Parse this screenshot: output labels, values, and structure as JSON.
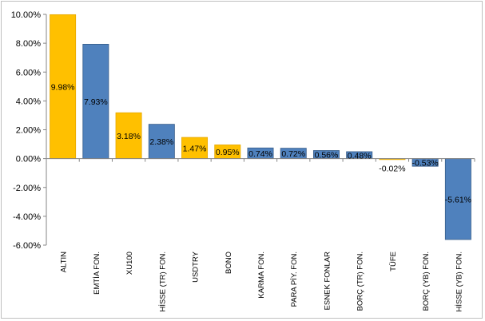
{
  "chart_data": {
    "type": "bar",
    "categories": [
      "ALTIN",
      "EMTİA FON.",
      "XU100",
      "HİSSE (TR) FON.",
      "USDTRY",
      "BONO",
      "KARMA FON.",
      "PARA PİY. FON.",
      "ESNEK FONLAR",
      "BORÇ (TR) FON.",
      "TÜFE",
      "BORÇ (YB) FON.",
      "HİSSE (YB) FON."
    ],
    "values": [
      9.98,
      7.93,
      3.18,
      2.38,
      1.47,
      0.95,
      0.74,
      0.72,
      0.56,
      0.48,
      -0.02,
      -0.53,
      -5.61
    ],
    "data_labels": [
      "9.98%",
      "7.93%",
      "3.18%",
      "2.38%",
      "1.47%",
      "0.95%",
      "0.74%",
      "0.72%",
      "0.56%",
      "0.48%",
      "-0.02%",
      "-0.53%",
      "-5.61%"
    ],
    "bar_colors": [
      "#FFC000",
      "#4F81BD",
      "#FFC000",
      "#4F81BD",
      "#FFC000",
      "#FFC000",
      "#4F81BD",
      "#4F81BD",
      "#4F81BD",
      "#4F81BD",
      "#FFC000",
      "#4F81BD",
      "#4F81BD"
    ],
    "bar_border_colors": [
      "#E6A800",
      "#385D8A",
      "#E6A800",
      "#385D8A",
      "#E6A800",
      "#E6A800",
      "#385D8A",
      "#385D8A",
      "#385D8A",
      "#385D8A",
      "#E6A800",
      "#385D8A",
      "#385D8A"
    ],
    "yticks": [
      -6,
      -4,
      -2,
      0,
      2,
      4,
      6,
      8,
      10
    ],
    "ytick_labels": [
      "-6.00%",
      "-4.00%",
      "-2.00%",
      "0.00%",
      "2.00%",
      "4.00%",
      "6.00%",
      "8.00%",
      "10.00%"
    ],
    "ylim": [
      -6,
      10
    ],
    "grid": false,
    "legend": "none",
    "title": "",
    "xlabel": "",
    "ylabel": ""
  }
}
